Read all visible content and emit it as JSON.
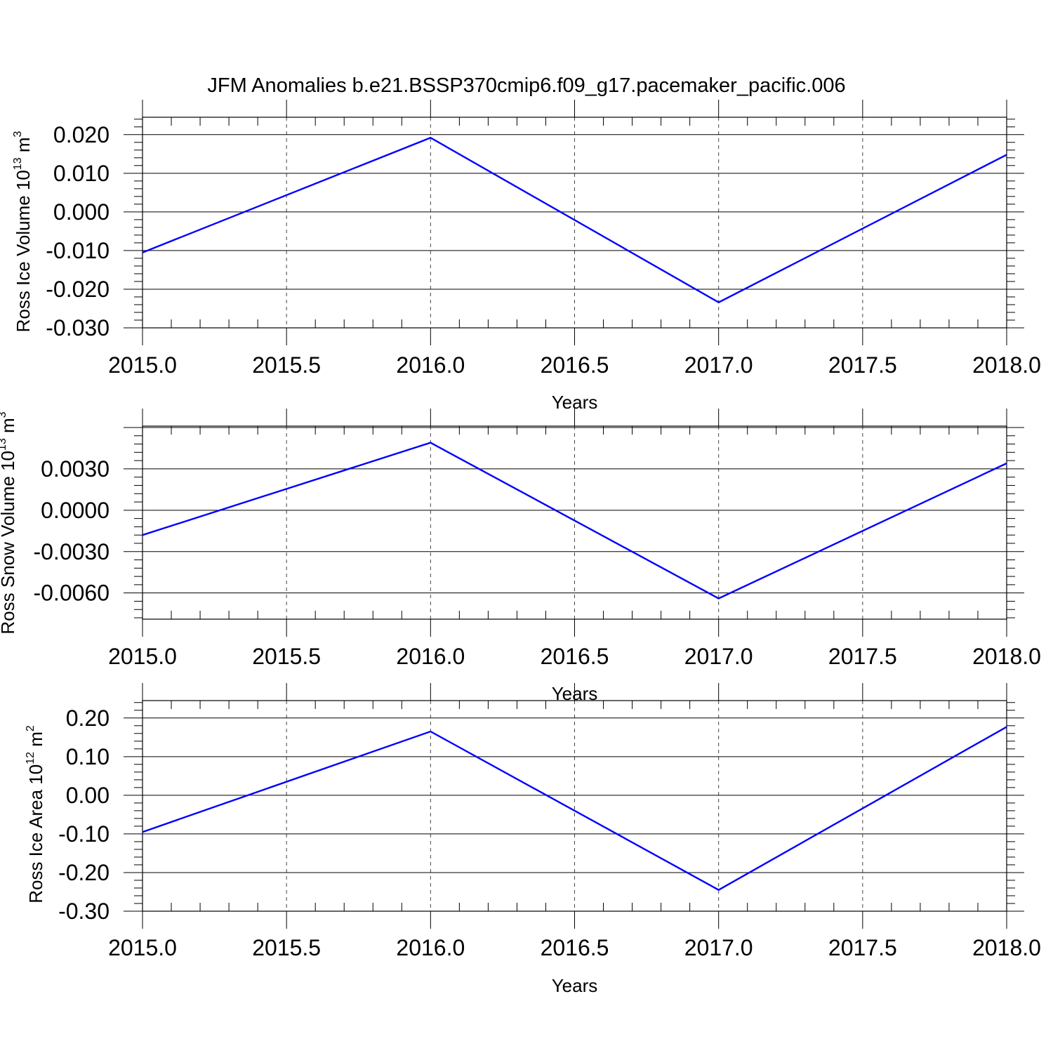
{
  "title": "JFM Anomalies b.e21.BSSP370cmip6.f09_g17.pacemaker_pacific.006",
  "chart_data": [
    {
      "type": "line",
      "title": "",
      "xlabel": "Years",
      "ylabel": "Ross Ice Volume 10",
      "ylabel_exp": "13",
      "ylabel_unit": " m",
      "ylabel_unit_exp": "3",
      "xlim": [
        2015.0,
        2018.0
      ],
      "ylim": [
        -0.03,
        0.0245
      ],
      "x_ticks": [
        2015.0,
        2015.5,
        2016.0,
        2016.5,
        2017.0,
        2017.5,
        2018.0
      ],
      "x_tick_labels": [
        "2015.0",
        "2015.5",
        "2016.0",
        "2016.5",
        "2017.0",
        "2017.5",
        "2018.0"
      ],
      "y_ticks": [
        0.02,
        0.01,
        0.0,
        -0.01,
        -0.02,
        -0.03
      ],
      "y_tick_labels": [
        "0.020",
        "0.010",
        "0.000",
        "-0.010",
        "-0.020",
        "-0.030"
      ],
      "y_minor_step": 0.002,
      "grid": "vertical dashed",
      "color": "#0000ff",
      "x": [
        2015.0,
        2016.0,
        2017.0,
        2018.0
      ],
      "y": [
        -0.0105,
        0.0192,
        -0.0234,
        0.0148
      ]
    },
    {
      "type": "line",
      "title": "",
      "xlabel": "Years",
      "ylabel": "Ross Snow Volume 10",
      "ylabel_exp": "13",
      "ylabel_unit": " m",
      "ylabel_unit_exp": "3",
      "xlim": [
        2015.0,
        2018.0
      ],
      "ylim": [
        -0.0079,
        0.0061
      ],
      "x_ticks": [
        2015.0,
        2015.5,
        2016.0,
        2016.5,
        2017.0,
        2017.5,
        2018.0
      ],
      "x_tick_labels": [
        "2015.0",
        "2015.5",
        "2016.0",
        "2016.5",
        "2017.0",
        "2017.5",
        "2018.0"
      ],
      "y_ticks": [
        0.003,
        0.0,
        -0.003,
        -0.006
      ],
      "y_tick_labels": [
        "0.0030",
        "0.0000",
        "-0.0030",
        "-0.0060"
      ],
      "y_minor_step": 0.0006,
      "grid": "vertical dashed",
      "color": "#0000ff",
      "x": [
        2015.0,
        2016.0,
        2017.0,
        2018.0
      ],
      "y": [
        -0.0018,
        0.0049,
        -0.0064,
        0.0034
      ]
    },
    {
      "type": "line",
      "title": "",
      "xlabel": "Years",
      "ylabel": "Ross Ice Area 10",
      "ylabel_exp": "12",
      "ylabel_unit": " m",
      "ylabel_unit_exp": "2",
      "xlim": [
        2015.0,
        2018.0
      ],
      "ylim": [
        -0.3,
        0.245
      ],
      "x_ticks": [
        2015.0,
        2015.5,
        2016.0,
        2016.5,
        2017.0,
        2017.5,
        2018.0
      ],
      "x_tick_labels": [
        "2015.0",
        "2015.5",
        "2016.0",
        "2016.5",
        "2017.0",
        "2017.5",
        "2018.0"
      ],
      "y_ticks": [
        0.2,
        0.1,
        0.0,
        -0.1,
        -0.2,
        -0.3
      ],
      "y_tick_labels": [
        "0.20",
        "0.10",
        "0.00",
        "-0.10",
        "-0.20",
        "-0.30"
      ],
      "y_minor_step": 0.02,
      "grid": "vertical dashed",
      "color": "#0000ff",
      "x": [
        2015.0,
        2016.0,
        2017.0,
        2018.0
      ],
      "y": [
        -0.095,
        0.165,
        -0.245,
        0.177
      ]
    }
  ]
}
